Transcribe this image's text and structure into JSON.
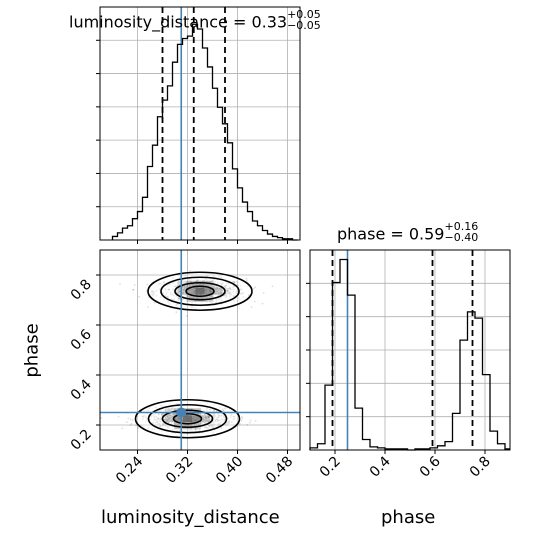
{
  "chart_data": [
    {
      "type": "histogram",
      "panel": "luminosity_distance marginal",
      "title": {
        "name": "luminosity_distance",
        "value": "0.33",
        "err_plus": "+0.05",
        "err_minus": "−0.05"
      },
      "xlim": [
        0.18,
        0.5
      ],
      "bin_edges": [
        0.2,
        0.208,
        0.216,
        0.224,
        0.232,
        0.24,
        0.248,
        0.256,
        0.264,
        0.272,
        0.28,
        0.288,
        0.296,
        0.304,
        0.312,
        0.32,
        0.328,
        0.336,
        0.344,
        0.352,
        0.36,
        0.368,
        0.376,
        0.384,
        0.392,
        0.4,
        0.408,
        0.416,
        0.424,
        0.432,
        0.44,
        0.448,
        0.456,
        0.464,
        0.472,
        0.48,
        0.488,
        0.496
      ],
      "counts": [
        3,
        6,
        10,
        12,
        18,
        24,
        36,
        62,
        80,
        104,
        118,
        130,
        150,
        165,
        170,
        172,
        182,
        178,
        162,
        146,
        128,
        112,
        98,
        82,
        60,
        44,
        32,
        24,
        16,
        12,
        8,
        5,
        3,
        2,
        1,
        1,
        0
      ],
      "quantile_lines": [
        0.28,
        0.33,
        0.38
      ],
      "truth": 0.31
    },
    {
      "type": "scatter",
      "panel": "2D contour",
      "xlabel": "luminosity_distance",
      "ylabel": "phase",
      "xlim": [
        0.18,
        0.5
      ],
      "ylim": [
        0.1,
        0.9
      ],
      "x_ticks": [
        "0.24",
        "0.32",
        "0.40",
        "0.48"
      ],
      "y_ticks": [
        "0.2",
        "0.4",
        "0.6",
        "0.8"
      ],
      "modes": [
        {
          "x": 0.34,
          "y": 0.735,
          "sx": 0.035,
          "sy": 0.045
        },
        {
          "x": 0.32,
          "y": 0.225,
          "sx": 0.035,
          "sy": 0.04
        }
      ],
      "truth": {
        "x": 0.31,
        "y": 0.25
      }
    },
    {
      "type": "histogram",
      "panel": "phase marginal",
      "title": {
        "name": "phase",
        "value": "0.59",
        "err_plus": "+0.16",
        "err_minus": "−0.40"
      },
      "xlabel": "phase",
      "xlim": [
        0.1,
        0.9
      ],
      "x_ticks": [
        "0.2",
        "0.4",
        "0.6",
        "0.8"
      ],
      "bin_edges": [
        0.1,
        0.13,
        0.16,
        0.19,
        0.22,
        0.25,
        0.28,
        0.31,
        0.34,
        0.37,
        0.4,
        0.43,
        0.46,
        0.49,
        0.52,
        0.55,
        0.58,
        0.61,
        0.64,
        0.67,
        0.7,
        0.73,
        0.76,
        0.79,
        0.82,
        0.85,
        0.88,
        0.9
      ],
      "counts": [
        2,
        6,
        62,
        160,
        182,
        148,
        40,
        10,
        3,
        2,
        1,
        1,
        1,
        0,
        1,
        1,
        2,
        4,
        8,
        35,
        105,
        132,
        126,
        72,
        18,
        6,
        1
      ],
      "quantile_lines": [
        0.19,
        0.59,
        0.75
      ],
      "truth": 0.25
    }
  ]
}
